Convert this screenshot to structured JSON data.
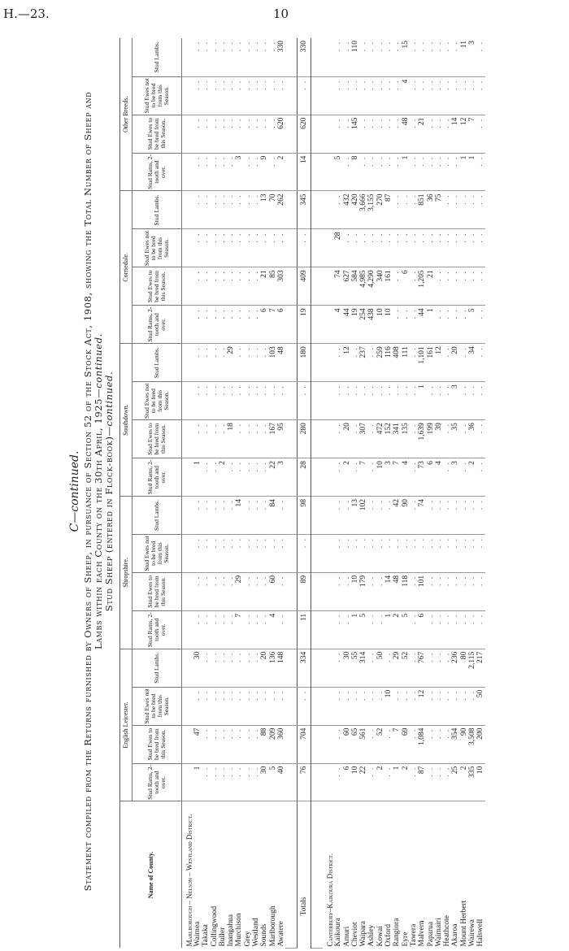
{
  "page": {
    "reference": "H.—23.",
    "number": "10"
  },
  "heading": {
    "continued": "C—continued.",
    "line1": "Statement compiled from the Returns furnished by Owners of Sheep, in pursuance of Section 52 of the Stock Act, 1908, showing the Total Number of Sheep and",
    "line2": "Lambs within each County on the 30th April, 1925",
    "line2_suffix": "—continued.",
    "line3": "Stud Sheep (entered in Flock-book)",
    "line3_suffix": "—continued."
  },
  "columns": {
    "name": "Name of County.",
    "breeds": [
      "English Leicester.",
      "Shropshire.",
      "Southdown.",
      "Corriedale.",
      "Other Breeds."
    ],
    "sub": [
      "Stud Rams, 2-tooth and over.",
      "Stud Ewes to be bred from this Season.",
      "Stud Ewes not to be bred from this Season.",
      "Stud Lambs."
    ]
  },
  "empty_mark": ". .",
  "districts": [
    {
      "name": "Marlborough – Nelson – Westland District.",
      "rows": [
        [
          "Waimea",
          "1",
          "47",
          "",
          "30",
          "",
          "",
          "",
          "",
          "1",
          "",
          "",
          "",
          "",
          "",
          "",
          "",
          "",
          "",
          "",
          ""
        ],
        [
          "Takaka",
          "",
          "",
          "",
          "",
          "",
          "",
          "",
          "",
          "",
          "",
          "",
          "",
          "",
          "",
          "",
          "",
          "",
          "",
          "",
          ""
        ],
        [
          "Collingwood",
          "",
          "",
          "",
          "",
          "",
          "",
          "",
          "",
          "",
          "",
          "",
          "",
          "",
          "",
          "",
          "",
          "",
          "",
          "",
          ""
        ],
        [
          "Buller",
          "",
          "",
          "",
          "",
          "",
          "",
          "",
          "",
          "2",
          "",
          "",
          "",
          "",
          "",
          "",
          "",
          "",
          "",
          "",
          ""
        ],
        [
          "Inangahua",
          "",
          "",
          "",
          "",
          "",
          "",
          "",
          "",
          "",
          "18",
          "",
          "29",
          "",
          "",
          "",
          "",
          "",
          "",
          "",
          ""
        ],
        [
          "Murchison",
          "",
          "",
          "",
          "",
          "7",
          "29",
          "",
          "14",
          "",
          "",
          "",
          "",
          "",
          "",
          "",
          "",
          "3",
          "",
          "",
          ""
        ],
        [
          "Grey",
          "",
          "",
          "",
          "",
          "",
          "",
          "",
          "",
          "",
          "",
          "",
          "",
          "",
          "",
          "",
          "",
          "",
          "",
          "",
          ""
        ],
        [
          "Westland",
          "",
          "",
          "",
          "",
          "",
          "",
          "",
          "",
          "",
          "",
          "",
          "",
          "",
          "",
          "",
          "",
          "",
          "",
          "",
          ""
        ],
        [
          "Sounds",
          "30",
          "88",
          "",
          "20",
          "",
          "",
          "",
          "",
          "",
          "",
          "",
          "",
          "6",
          "21",
          "",
          "13",
          "9",
          "",
          "",
          ""
        ],
        [
          "Marlborough",
          "5",
          "209",
          "",
          "136",
          "4",
          "60",
          "",
          "84",
          "22",
          "167",
          "",
          "103",
          "7",
          "85",
          "",
          "70",
          "",
          "",
          "",
          ""
        ],
        [
          "Awatere",
          "40",
          "360",
          "",
          "148",
          "",
          "",
          "",
          "",
          "3",
          "95",
          "",
          "48",
          "6",
          "303",
          "",
          "262",
          "2",
          "620",
          "",
          "330"
        ]
      ],
      "totals": [
        "Totals",
        "76",
        "704",
        "",
        "334",
        "11",
        "89",
        "",
        "98",
        "28",
        "280",
        "",
        "180",
        "19",
        "409",
        "",
        "345",
        "14",
        "620",
        "",
        "330"
      ]
    },
    {
      "name": "Canterbury–Kaikoura District.",
      "rows": [
        [
          "Kaikoura",
          "",
          "",
          "",
          "",
          "",
          "",
          "",
          "",
          "",
          "",
          "",
          "",
          "4",
          "74",
          "28",
          "",
          "5",
          "",
          "",
          ""
        ],
        [
          "Amuri",
          "6",
          "60",
          "",
          "30",
          "",
          "",
          "",
          "",
          "2",
          "20",
          "",
          "12",
          "44",
          "627",
          "",
          "432",
          "",
          "",
          "",
          ""
        ],
        [
          "Cheviot",
          "10",
          "65",
          "",
          "55",
          "1",
          "10",
          "",
          "13",
          "",
          "",
          "",
          "",
          "19",
          "584",
          "",
          "420",
          "8",
          "145",
          "",
          "110"
        ],
        [
          "Waipara",
          "22",
          "561",
          "",
          "314",
          "5",
          "179",
          "",
          "102",
          "7",
          "307",
          "",
          "237",
          "254",
          "4,985",
          "",
          "3,666",
          "",
          "",
          "",
          ""
        ],
        [
          "Ashley",
          "",
          "",
          "",
          "",
          "",
          "",
          "",
          "",
          "",
          "",
          "",
          "",
          "438",
          "4,290",
          "",
          "3,155",
          "",
          "",
          "",
          ""
        ],
        [
          "Kowai",
          "2",
          "52",
          "",
          "50",
          "",
          "",
          "",
          "",
          "10",
          "472",
          "",
          "259",
          "10",
          "340",
          "",
          "270",
          "",
          "",
          "",
          ""
        ],
        [
          "Oxford",
          "",
          "",
          "10",
          "",
          "1",
          "14",
          "",
          "",
          "3",
          "152",
          "",
          "116",
          "10",
          "161",
          "",
          "87",
          "",
          "",
          "",
          ""
        ],
        [
          "Rangiora",
          "1",
          "7",
          "",
          "29",
          "2",
          "48",
          "",
          "42",
          "7",
          "341",
          "",
          "408",
          "",
          "",
          "",
          "",
          "",
          "",
          "",
          ""
        ],
        [
          "Eyre",
          "2",
          "69",
          "",
          "52",
          "5",
          "118",
          "",
          "90",
          "4",
          "135",
          "",
          "111",
          "",
          "6",
          "",
          "",
          "1",
          "48",
          "4",
          "15"
        ],
        [
          "Tawera",
          "",
          "",
          "",
          "",
          "",
          "",
          "",
          "",
          "",
          "",
          "",
          "",
          "",
          "",
          "",
          "",
          "",
          "",
          "",
          ""
        ],
        [
          "Malvern",
          "87",
          "1,084",
          "12",
          "767",
          "6",
          "101",
          "",
          "74",
          "73",
          "1,639",
          "1",
          "1,101",
          "44",
          "1,205",
          "",
          "851",
          "",
          "21",
          "",
          ""
        ],
        [
          "Paparua",
          "",
          "",
          "",
          "",
          "",
          "",
          "",
          "",
          "6",
          "199",
          "",
          "161",
          "1",
          "21",
          "",
          "36",
          "",
          "",
          "",
          ""
        ],
        [
          "Waimairi",
          "",
          "",
          "",
          "",
          "",
          "",
          "",
          "",
          "4",
          "39",
          "",
          "12",
          "",
          "",
          "",
          "75",
          "",
          "",
          "",
          ""
        ],
        [
          "Heathcote",
          "",
          "",
          "",
          "",
          "",
          "",
          "",
          "",
          "",
          "",
          "",
          "",
          "",
          "",
          "",
          "",
          "",
          "",
          "",
          ""
        ],
        [
          "Akaroa",
          "25",
          "354",
          "",
          "236",
          "",
          "",
          "",
          "",
          "3",
          "35",
          "3",
          "20",
          "",
          "",
          "",
          "",
          "",
          "14",
          "",
          ""
        ],
        [
          "Mount Herbert",
          "2",
          "90",
          "",
          "80",
          "",
          "",
          "",
          "",
          "",
          "",
          "",
          "",
          "",
          "",
          "",
          "",
          "1",
          "12",
          "",
          "11"
        ],
        [
          "Wairewa",
          "335",
          "3,508",
          "",
          "2,115",
          "",
          "",
          "",
          "",
          "2",
          "36",
          "",
          "34",
          "5",
          "",
          "",
          "",
          "1",
          "7",
          "",
          "3"
        ],
        [
          "Halswell",
          "10",
          "200",
          "50",
          "217",
          "",
          "",
          "",
          "",
          "",
          "",
          "",
          "",
          "",
          "",
          "",
          "",
          "",
          "",
          "",
          ""
        ]
      ]
    }
  ]
}
